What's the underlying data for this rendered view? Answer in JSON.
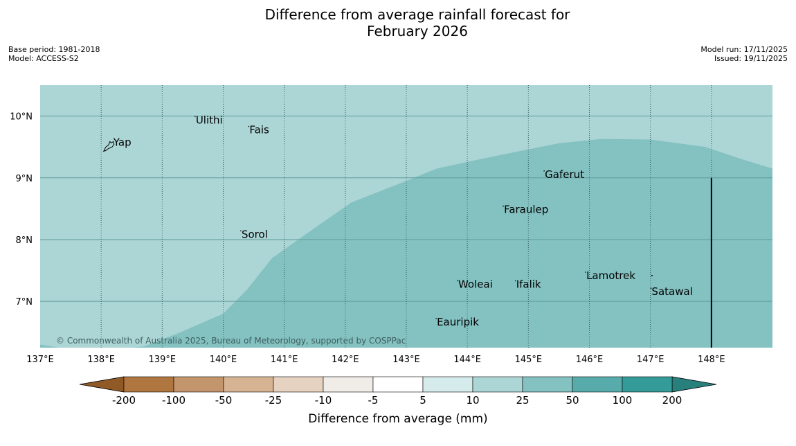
{
  "title_line1": "Difference from average rainfall forecast for",
  "title_line2": "February 2026",
  "meta_left": {
    "base_period": "Base period: 1981-2018",
    "model": "Model: ACCESS-S2"
  },
  "meta_right": {
    "model_run": "Model run: 17/11/2025",
    "issued": "Issued: 19/11/2025"
  },
  "map": {
    "lon_range": [
      137,
      149
    ],
    "lat_range": [
      6.25,
      10.5
    ],
    "lon_ticks": [
      {
        "value": 137,
        "label": "137°E"
      },
      {
        "value": 138,
        "label": "138°E"
      },
      {
        "value": 139,
        "label": "139°E"
      },
      {
        "value": 140,
        "label": "140°E"
      },
      {
        "value": 141,
        "label": "141°E"
      },
      {
        "value": 142,
        "label": "142°E"
      },
      {
        "value": 143,
        "label": "143°E"
      },
      {
        "value": 144,
        "label": "144°E"
      },
      {
        "value": 145,
        "label": "145°E"
      },
      {
        "value": 146,
        "label": "146°E"
      },
      {
        "value": 147,
        "label": "147°E"
      },
      {
        "value": 148,
        "label": "148°E"
      }
    ],
    "lat_ticks": [
      {
        "value": 10,
        "label": "10°N"
      },
      {
        "value": 9,
        "label": "9°N"
      },
      {
        "value": 8,
        "label": "8°N"
      },
      {
        "value": 7,
        "label": "7°N"
      }
    ],
    "zones": [
      {
        "category": "10 to 25",
        "color": "#acd5d5"
      },
      {
        "category": "25 to 50",
        "color": "#84c1c1"
      }
    ],
    "zone_boundary": [
      [
        137.0,
        6.3
      ],
      [
        137.5,
        6.22
      ],
      [
        138.0,
        6.2
      ],
      [
        138.7,
        6.27
      ],
      [
        139.3,
        6.5
      ],
      [
        140.0,
        6.8
      ],
      [
        140.4,
        7.2
      ],
      [
        140.8,
        7.7
      ],
      [
        141.3,
        8.05
      ],
      [
        142.1,
        8.6
      ],
      [
        143.0,
        8.95
      ],
      [
        143.5,
        9.15
      ],
      [
        144.2,
        9.3
      ],
      [
        145.0,
        9.46
      ],
      [
        145.5,
        9.56
      ],
      [
        146.2,
        9.63
      ],
      [
        147.0,
        9.62
      ],
      [
        147.9,
        9.5
      ],
      [
        148.5,
        9.3
      ],
      [
        149.0,
        9.15
      ]
    ],
    "border_line": {
      "lon": 148.0,
      "lat_from": 6.25,
      "lat_to": 9.0
    },
    "places": [
      {
        "name": "Yap",
        "lon": 138.2,
        "lat": 9.52,
        "has_outline": true
      },
      {
        "name": "Ulithi",
        "lon": 139.55,
        "lat": 9.88
      },
      {
        "name": "Fais",
        "lon": 140.43,
        "lat": 9.72
      },
      {
        "name": "Gaferut",
        "lon": 145.27,
        "lat": 9.0
      },
      {
        "name": "Faraulep",
        "lon": 144.6,
        "lat": 8.43
      },
      {
        "name": "Sorol",
        "lon": 140.3,
        "lat": 8.03
      },
      {
        "name": "Lamotrek",
        "lon": 145.95,
        "lat": 7.36
      },
      {
        "name": "Woleai",
        "lon": 143.85,
        "lat": 7.22
      },
      {
        "name": "Ifalik",
        "lon": 144.8,
        "lat": 7.22
      },
      {
        "name": "Satawal",
        "lon": 147.02,
        "lat": 7.1
      },
      {
        "name": "Eauripik",
        "lon": 143.5,
        "lat": 6.61
      }
    ],
    "copyright": "© Commonwealth of Australia 2025, Bureau of Meteorology, supported by COSPPac"
  },
  "colorbar": {
    "title": "Difference from average (mm)",
    "ticks": [
      "-200",
      "-100",
      "-50",
      "-25",
      "-10",
      "-5",
      "5",
      "10",
      "25",
      "50",
      "100",
      "200"
    ],
    "extend_low_color": "#8f5a26",
    "extend_high_color": "#27807c",
    "colors": [
      "#b07640",
      "#c3956c",
      "#d6b392",
      "#e6d2c0",
      "#f0ece7",
      "#ffffff",
      "#d6ebeb",
      "#acd5d5",
      "#84c1c1",
      "#57abab",
      "#349b98"
    ]
  }
}
